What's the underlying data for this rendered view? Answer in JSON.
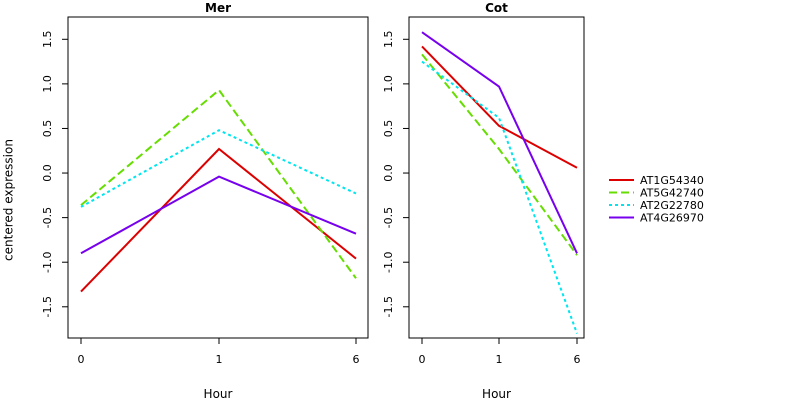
{
  "chart_data": {
    "type": "line",
    "ylabel": "centered expression",
    "xlabel": "Hour",
    "legend_position": "right",
    "series_styles": [
      {
        "color": "#dd0000",
        "dash": "solid"
      },
      {
        "color": "#66dd00",
        "dash": "dashed"
      },
      {
        "color": "#00e5ee",
        "dash": "dotted"
      },
      {
        "color": "#7700ee",
        "dash": "solid"
      }
    ],
    "legend": [
      "AT1G54340",
      "AT5G42740",
      "AT2G22780",
      "AT4G26970"
    ],
    "panels": [
      {
        "title": "Mer",
        "x": [
          "0",
          "1",
          "6"
        ],
        "ylim": [
          -1.85,
          1.75
        ],
        "yticks": [
          "-1.5",
          "-1.0",
          "-0.5",
          "0.0",
          "0.5",
          "1.0",
          "1.5"
        ],
        "series": [
          {
            "values": [
              -1.33,
              0.27,
              -0.96
            ]
          },
          {
            "values": [
              -0.36,
              0.93,
              -1.18
            ]
          },
          {
            "values": [
              -0.38,
              0.48,
              -0.23
            ]
          },
          {
            "values": [
              -0.9,
              -0.04,
              -0.68
            ]
          }
        ]
      },
      {
        "title": "Cot",
        "x": [
          "0",
          "1",
          "6"
        ],
        "ylim": [
          -1.85,
          1.75
        ],
        "yticks": [
          "-1.5",
          "-1.0",
          "-0.5",
          "0.0",
          "0.5",
          "1.0",
          "1.5"
        ],
        "series": [
          {
            "values": [
              1.42,
              0.53,
              0.06
            ]
          },
          {
            "values": [
              1.33,
              0.27,
              -0.92
            ]
          },
          {
            "values": [
              1.25,
              0.62,
              -1.8
            ]
          },
          {
            "values": [
              1.58,
              0.97,
              -0.9
            ]
          }
        ]
      }
    ]
  }
}
